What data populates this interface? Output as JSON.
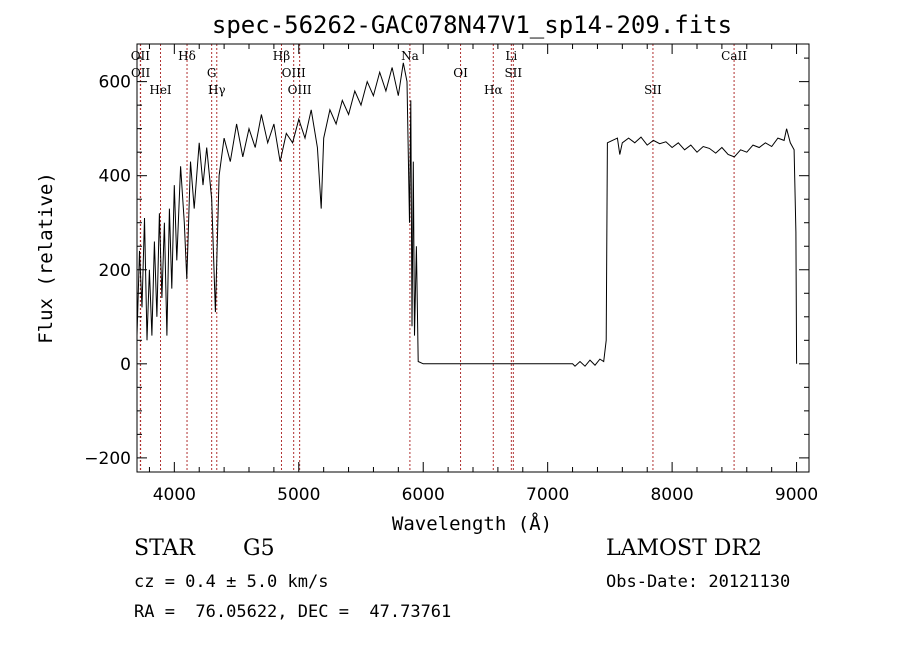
{
  "chart_data": {
    "type": "line",
    "title": "spec-56262-GAC078N47V1_sp14-209.fits",
    "xlabel": "Wavelength (Å)",
    "ylabel": "Flux (relative)",
    "xlim": [
      3700,
      9100
    ],
    "ylim": [
      -230,
      680
    ],
    "xticks": [
      4000,
      5000,
      6000,
      7000,
      8000,
      9000
    ],
    "yticks": [
      -200,
      0,
      200,
      400,
      600
    ],
    "grid": false,
    "line_color": "#000000",
    "marker_color": "#b03030",
    "series": [
      {
        "points": [
          [
            3700,
            60
          ],
          [
            3720,
            240
          ],
          [
            3740,
            120
          ],
          [
            3760,
            310
          ],
          [
            3780,
            50
          ],
          [
            3800,
            200
          ],
          [
            3820,
            60
          ],
          [
            3840,
            260
          ],
          [
            3860,
            100
          ],
          [
            3880,
            320
          ],
          [
            3900,
            140
          ],
          [
            3920,
            300
          ],
          [
            3940,
            60
          ],
          [
            3960,
            330
          ],
          [
            3980,
            160
          ],
          [
            4000,
            380
          ],
          [
            4020,
            220
          ],
          [
            4050,
            420
          ],
          [
            4080,
            300
          ],
          [
            4100,
            180
          ],
          [
            4130,
            430
          ],
          [
            4160,
            330
          ],
          [
            4200,
            470
          ],
          [
            4230,
            380
          ],
          [
            4260,
            460
          ],
          [
            4300,
            350
          ],
          [
            4330,
            110
          ],
          [
            4360,
            400
          ],
          [
            4400,
            480
          ],
          [
            4450,
            430
          ],
          [
            4500,
            510
          ],
          [
            4550,
            440
          ],
          [
            4600,
            500
          ],
          [
            4650,
            460
          ],
          [
            4700,
            530
          ],
          [
            4750,
            470
          ],
          [
            4800,
            510
          ],
          [
            4850,
            430
          ],
          [
            4900,
            490
          ],
          [
            4950,
            470
          ],
          [
            5000,
            520
          ],
          [
            5050,
            480
          ],
          [
            5100,
            540
          ],
          [
            5150,
            460
          ],
          [
            5180,
            330
          ],
          [
            5200,
            480
          ],
          [
            5250,
            540
          ],
          [
            5300,
            510
          ],
          [
            5350,
            560
          ],
          [
            5400,
            530
          ],
          [
            5450,
            580
          ],
          [
            5500,
            550
          ],
          [
            5550,
            600
          ],
          [
            5600,
            570
          ],
          [
            5650,
            620
          ],
          [
            5700,
            580
          ],
          [
            5750,
            630
          ],
          [
            5800,
            570
          ],
          [
            5840,
            640
          ],
          [
            5870,
            600
          ],
          [
            5890,
            300
          ],
          [
            5900,
            560
          ],
          [
            5910,
            80
          ],
          [
            5920,
            430
          ],
          [
            5930,
            60
          ],
          [
            5945,
            250
          ],
          [
            5960,
            5
          ],
          [
            6000,
            0
          ],
          [
            6500,
            0
          ],
          [
            7000,
            0
          ],
          [
            7200,
            0
          ],
          [
            7220,
            -5
          ],
          [
            7260,
            5
          ],
          [
            7300,
            -5
          ],
          [
            7340,
            8
          ],
          [
            7380,
            -3
          ],
          [
            7420,
            10
          ],
          [
            7450,
            5
          ],
          [
            7470,
            50
          ],
          [
            7480,
            470
          ],
          [
            7520,
            475
          ],
          [
            7560,
            480
          ],
          [
            7580,
            445
          ],
          [
            7600,
            470
          ],
          [
            7650,
            480
          ],
          [
            7700,
            470
          ],
          [
            7750,
            482
          ],
          [
            7800,
            465
          ],
          [
            7850,
            475
          ],
          [
            7900,
            468
          ],
          [
            7950,
            472
          ],
          [
            8000,
            460
          ],
          [
            8050,
            470
          ],
          [
            8100,
            455
          ],
          [
            8150,
            465
          ],
          [
            8200,
            450
          ],
          [
            8250,
            462
          ],
          [
            8300,
            458
          ],
          [
            8350,
            448
          ],
          [
            8400,
            460
          ],
          [
            8450,
            445
          ],
          [
            8500,
            440
          ],
          [
            8550,
            455
          ],
          [
            8600,
            450
          ],
          [
            8650,
            465
          ],
          [
            8700,
            460
          ],
          [
            8750,
            470
          ],
          [
            8800,
            462
          ],
          [
            8850,
            480
          ],
          [
            8900,
            475
          ],
          [
            8920,
            500
          ],
          [
            8950,
            470
          ],
          [
            8980,
            455
          ],
          [
            8995,
            280
          ],
          [
            9000,
            0
          ]
        ]
      }
    ],
    "lines": [
      {
        "label": "OII",
        "x": 3727
      },
      {
        "label": "OII",
        "x": 3729
      },
      {
        "label": "HeI",
        "x": 3889
      },
      {
        "label": "Hδ",
        "x": 4102
      },
      {
        "label": "G",
        "x": 4300
      },
      {
        "label": "Hγ",
        "x": 4341
      },
      {
        "label": "Hβ",
        "x": 4861
      },
      {
        "label": "OIII",
        "x": 4959
      },
      {
        "label": "OIII",
        "x": 5007
      },
      {
        "label": "Na",
        "x": 5893
      },
      {
        "label": "OI",
        "x": 6300
      },
      {
        "label": "Hα",
        "x": 6563
      },
      {
        "label": "Li",
        "x": 6708
      },
      {
        "label": "SII",
        "x": 6724
      },
      {
        "label": "SII",
        "x": 7846
      },
      {
        "label": "CaII",
        "x": 8498
      }
    ],
    "annotations": {
      "object": "STAR",
      "subclass": "G5",
      "survey": "LAMOST DR2",
      "cz": "cz = 0.4 ± 5.0 km/s",
      "obs_date": "Obs-Date: 20121130",
      "coords": "RA =  76.05622, DEC =  47.73761"
    }
  }
}
